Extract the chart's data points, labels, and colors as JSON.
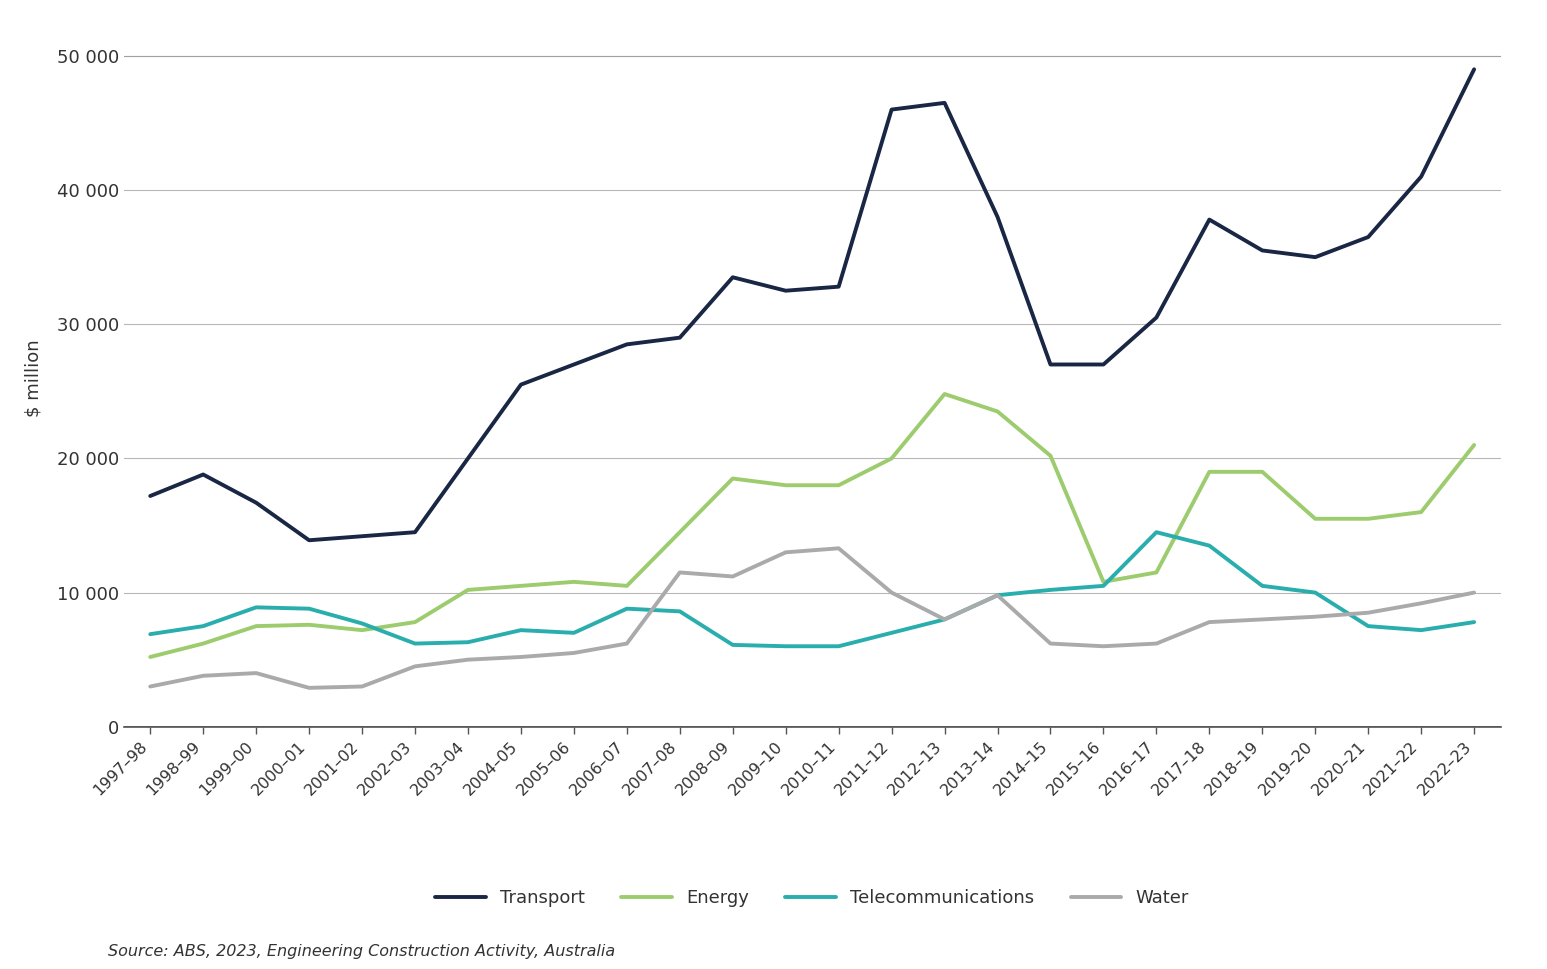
{
  "ylabel": "$ million",
  "source_text": "Source: ABS, 2023, Engineering Construction Activity, Australia",
  "categories": [
    "1997–98",
    "1998–99",
    "1999–00",
    "2000–01",
    "2001–02",
    "2002–03",
    "2003–04",
    "2004–05",
    "2005–06",
    "2006–07",
    "2007–08",
    "2008–09",
    "2009–10",
    "2010–11",
    "2011–12",
    "2012–13",
    "2013–14",
    "2014–15",
    "2015–16",
    "2016–17",
    "2017–18",
    "2018–19",
    "2019–20",
    "2020–21",
    "2021–22",
    "2022–23"
  ],
  "series": {
    "Transport": {
      "color": "#1a2744",
      "linewidth": 2.8,
      "values": [
        17200,
        18800,
        16700,
        13900,
        14200,
        14500,
        20000,
        25500,
        27000,
        28500,
        29000,
        33500,
        32500,
        32800,
        46000,
        46500,
        38000,
        27000,
        27000,
        30500,
        37800,
        35500,
        35000,
        36500,
        41000,
        49000
      ]
    },
    "Energy": {
      "color": "#9dcc6e",
      "linewidth": 2.8,
      "values": [
        5200,
        6200,
        7500,
        7600,
        7200,
        7800,
        10200,
        10500,
        10800,
        10500,
        14500,
        18500,
        18000,
        18000,
        20000,
        24800,
        23500,
        20200,
        10800,
        11500,
        19000,
        19000,
        15500,
        15500,
        16000,
        21000
      ]
    },
    "Telecommunications": {
      "color": "#2aadad",
      "linewidth": 2.8,
      "values": [
        6900,
        7500,
        8900,
        8800,
        7700,
        6200,
        6300,
        7200,
        7000,
        8800,
        8600,
        6100,
        6000,
        6000,
        7000,
        8000,
        9800,
        10200,
        10500,
        14500,
        13500,
        10500,
        10000,
        7500,
        7200,
        7800
      ]
    },
    "Water": {
      "color": "#aaaaaa",
      "linewidth": 2.8,
      "values": [
        3000,
        3800,
        4000,
        2900,
        3000,
        4500,
        5000,
        5200,
        5500,
        6200,
        11500,
        11200,
        13000,
        13300,
        10000,
        8000,
        9800,
        6200,
        6000,
        6200,
        7800,
        8000,
        8200,
        8500,
        9200,
        10000
      ]
    }
  },
  "ylim": [
    0,
    52000
  ],
  "yticks": [
    0,
    10000,
    20000,
    30000,
    40000,
    50000
  ],
  "ytick_labels": [
    "0",
    "10 000",
    "20 000",
    "30 000",
    "40 000",
    "50 000"
  ],
  "background_color": "#ffffff",
  "grid_color": "#999999",
  "legend_items": [
    "Transport",
    "Energy",
    "Telecommunications",
    "Water"
  ]
}
